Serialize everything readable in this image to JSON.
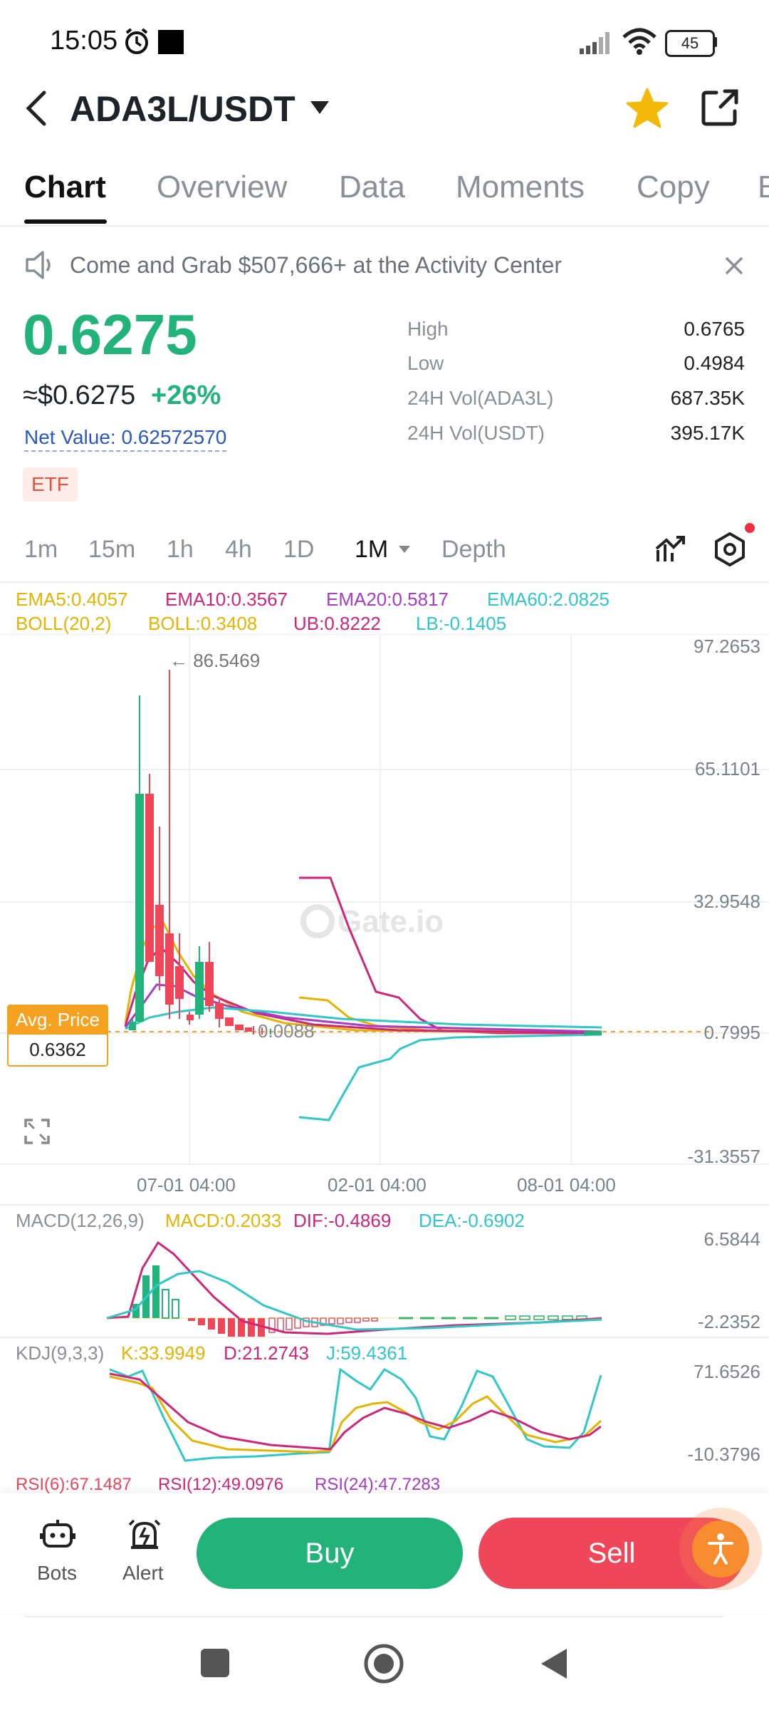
{
  "status": {
    "time": "15:05",
    "battery": "45"
  },
  "header": {
    "pair": "ADA3L/USDT"
  },
  "tabs": [
    "Chart",
    "Overview",
    "Data",
    "Moments",
    "Copy",
    "B"
  ],
  "banner": {
    "text": "Come and Grab $507,666+ at the Activity Center"
  },
  "price": {
    "last": "0.6275",
    "usd": "≈$0.6275",
    "change": "+26%",
    "net_value": "Net Value: 0.62572570",
    "tag": "ETF"
  },
  "stats": [
    {
      "label": "High",
      "value": "0.6765"
    },
    {
      "label": "Low",
      "value": "0.4984"
    },
    {
      "label": "24H Vol(ADA3L)",
      "value": "687.35K"
    },
    {
      "label": "24H Vol(USDT)",
      "value": "395.17K"
    }
  ],
  "timeframes": [
    "1m",
    "15m",
    "1h",
    "4h",
    "1D",
    "1M",
    "Depth"
  ],
  "indicators": {
    "ema5": "EMA5:0.4057",
    "ema10": "EMA10:0.3567",
    "ema20": "EMA20:0.5817",
    "ema60": "EMA60:2.0825",
    "boll": "BOLL(20,2)",
    "boll_v": "BOLL:0.3408",
    "ub": "UB:0.8222",
    "lb": "LB:-0.1405"
  },
  "main_chart": {
    "y_labels": [
      "97.2653",
      "65.1101",
      "32.9548",
      "0.7995",
      "-31.3557"
    ],
    "x_labels": [
      "07-01 04:00",
      "02-01 04:00",
      "08-01 04:00"
    ],
    "peak_label": "← 86.5469",
    "low_label": "0.0088",
    "avg_price_title": "Avg. Price",
    "avg_price_value": "0.6362",
    "watermark": "Gate.io"
  },
  "macd": {
    "title": "MACD(12,26,9)",
    "macd": "MACD:0.2033",
    "dif": "DIF:-0.4869",
    "dea": "DEA:-0.6902",
    "y_top": "6.5844",
    "y_bottom": "-2.2352"
  },
  "kdj": {
    "title": "KDJ(9,3,3)",
    "k": "K:33.9949",
    "d": "D:21.2743",
    "j": "J:59.4361",
    "y_top": "71.6526",
    "y_bottom": "-10.3796"
  },
  "rsi": {
    "r6": "RSI(6):67.1487",
    "r12": "RSI(12):49.0976",
    "r24": "RSI(24):47.7283"
  },
  "bottom": {
    "bots": "Bots",
    "alert": "Alert",
    "buy": "Buy",
    "sell": "Sell"
  },
  "colors": {
    "green": "#21b37a",
    "red": "#ef4659",
    "ema5": "#e6b400",
    "ema10": "#d0267a",
    "ema20": "#a83cc8",
    "ema60": "#2fc8c8"
  }
}
